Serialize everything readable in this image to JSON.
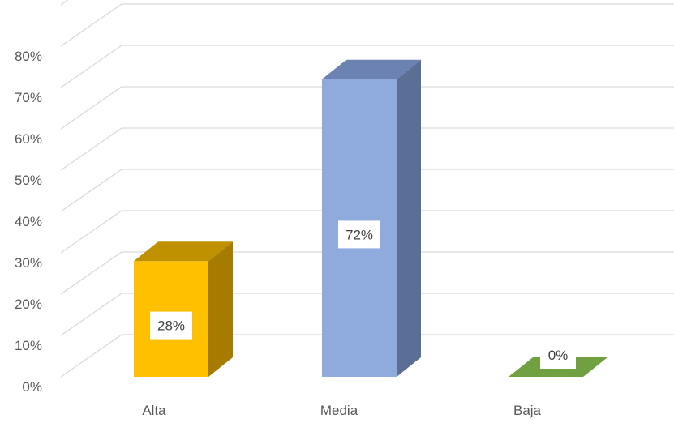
{
  "chart_data": {
    "type": "bar",
    "categories": [
      "Alta",
      "Media",
      "Baja"
    ],
    "values": [
      0.28,
      0.72,
      0
    ],
    "data_labels": [
      "28%",
      "72%",
      "0%"
    ],
    "y_ticks": [
      "0%",
      "10%",
      "20%",
      "30%",
      "40%",
      "50%",
      "60%",
      "70%",
      "80%"
    ],
    "ylim": [
      0,
      0.9
    ],
    "grid": true,
    "style": "3d-column",
    "colors": [
      {
        "front": "#FFC000",
        "side": "#A67C00",
        "top": "#BF9000"
      },
      {
        "front": "#8FAADC",
        "side": "#5B6E94",
        "top": "#6B82B3"
      },
      {
        "front": "#70AD47",
        "side": "#4E7A32",
        "top": "#70A040"
      }
    ],
    "grid_color": "#D9D9D9"
  }
}
